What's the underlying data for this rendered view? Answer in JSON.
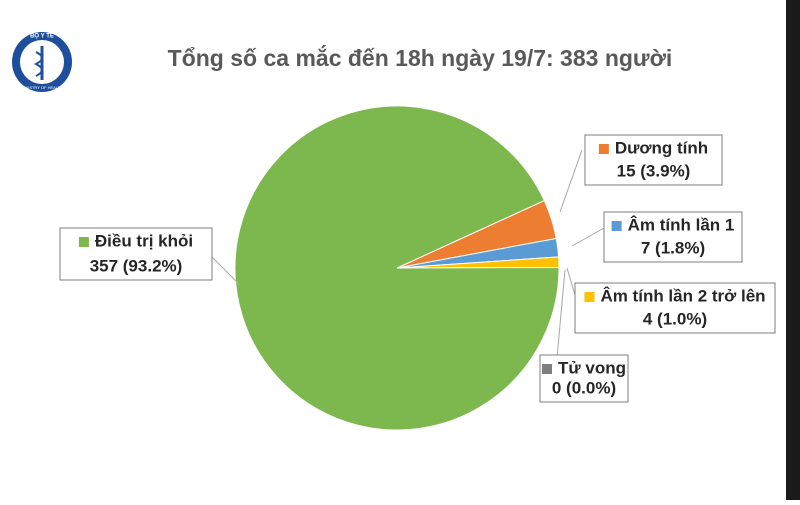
{
  "logo": {
    "top": "BỘ Y TẾ",
    "bottom": "MINISTRY OF HEALTH"
  },
  "chart_data": {
    "type": "pie",
    "title": "Tổng số ca mắc đến 18h ngày 19/7: 383 người",
    "categories": [
      "Dương tính",
      "Âm tính lần 1",
      "Âm tính lần 2 trở lên",
      "Tử vong",
      "Điều trị khỏi"
    ],
    "values": [
      15,
      7,
      4,
      0,
      357
    ],
    "value_labels": [
      "15 (3.9%)",
      "7 (1.8%)",
      "4 (1.0%)",
      "0 (0.0%)",
      "357 (93.2%)"
    ],
    "colors": [
      "#ed7d31",
      "#5b9bd5",
      "#ffc000",
      "#7f7f7f",
      "#7cb84d"
    ]
  }
}
